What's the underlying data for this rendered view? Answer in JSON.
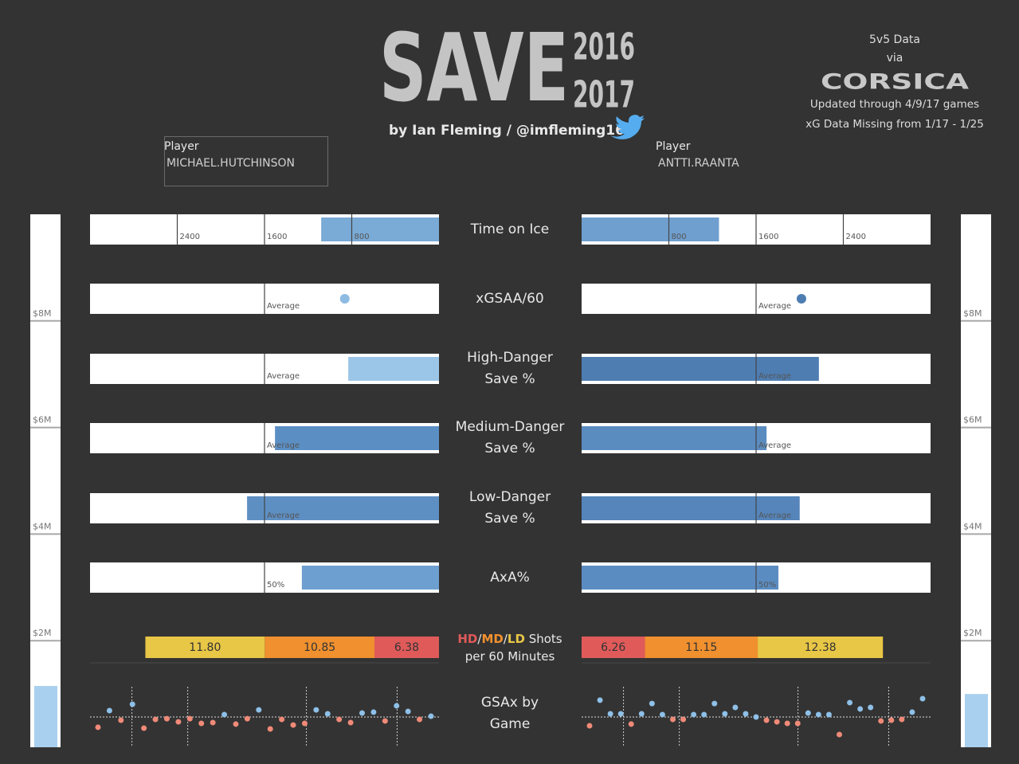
{
  "header": {
    "title": "SAVE",
    "season_start": "2016",
    "season_end": "2017",
    "byline": "by Ian Fleming / @imfleming16"
  },
  "source": {
    "lines": [
      "5v5 Data",
      "via"
    ],
    "logo": "CORSICA",
    "notes": [
      "Updated through 4/9/17 games",
      "xG Data Missing from 1/17 - 1/25"
    ]
  },
  "players": [
    {
      "label": "Player",
      "name": "MICHAEL.HUTCHINSON"
    },
    {
      "label": "Player",
      "name": "ANTTI.RAANTA"
    }
  ],
  "chart_data": [
    {
      "type": "bar",
      "title": "Time on Ice",
      "values": [
        1080,
        1260
      ],
      "colors": [
        "#7aaad6",
        "#6f9fcf"
      ],
      "xlim": [
        0,
        3200
      ],
      "xticks": [
        800,
        1600,
        2400
      ]
    },
    {
      "type": "dot",
      "title": "xGSAA/60",
      "values": [
        -0.23,
        0.13
      ],
      "colors": [
        "#8dbbe2",
        "#4e7db2"
      ],
      "xlim": [
        -0.5,
        0.5
      ],
      "xticks": [
        {
          "value": 0,
          "label": "Average"
        }
      ]
    },
    {
      "type": "bar",
      "title": "High-Danger Save %",
      "values": [
        0.752,
        0.836
      ],
      "colors": [
        "#9cc6e8",
        "#4e7db2"
      ],
      "xlim": [
        0.7,
        0.9
      ],
      "xticks": [
        {
          "value": 0.8,
          "label": "Average"
        }
      ]
    },
    {
      "type": "bar",
      "title": "Medium-Danger Save %",
      "values": [
        0.897,
        0.903
      ],
      "colors": [
        "#5b8fc4",
        "#5a8cc0"
      ],
      "xlim": [
        0.85,
        0.95
      ],
      "xticks": [
        {
          "value": 0.9,
          "label": "Average"
        }
      ]
    },
    {
      "type": "bar",
      "title": "Low-Danger Save %",
      "values": [
        0.982,
        0.985
      ],
      "colors": [
        "#5e8fc3",
        "#5585bb"
      ],
      "xlim": [
        0.96,
        1.0
      ],
      "xticks": [
        {
          "value": 0.98,
          "label": "Average"
        }
      ]
    },
    {
      "type": "bar",
      "title": "AxA%",
      "values": [
        39.3,
        56.4
      ],
      "colors": [
        "#6d9fd0",
        "#5b8cc1"
      ],
      "xlim": [
        0,
        100
      ],
      "xticks": [
        {
          "value": 50,
          "label": "50%"
        }
      ]
    },
    {
      "type": "stacked-bar",
      "title": "Shots per 60 Minutes",
      "separator": "/",
      "xlim": [
        0,
        34.5
      ],
      "series": [
        {
          "name": "HD",
          "color": "#e05a5a",
          "values": [
            6.38,
            6.26
          ],
          "value_labels": [
            "6.38",
            "6.26"
          ]
        },
        {
          "name": "MD",
          "color": "#f0902e",
          "values": [
            10.85,
            11.15
          ],
          "value_labels": [
            "10.85",
            "11.15"
          ]
        },
        {
          "name": "LD",
          "color": "#e8c646",
          "values": [
            11.8,
            12.38
          ],
          "value_labels": [
            "11.80",
            "12.38"
          ]
        }
      ]
    },
    {
      "type": "strip",
      "title": "GSAx by Game",
      "colors": [
        "#8ec0e8",
        "#f08a78"
      ],
      "ylim": [
        -2,
        2
      ],
      "series": [
        {
          "values": [
            -0.68,
            0.42,
            -0.21,
            0.84,
            -0.74,
            -0.16,
            -0.11,
            -0.32,
            -0.11,
            -0.42,
            -0.37,
            0.16,
            -0.47,
            -0.11,
            0.47,
            -0.79,
            -0.16,
            -0.53,
            -0.42,
            0.47,
            0.21,
            -0.16,
            -0.37,
            0.26,
            0.32,
            -0.26,
            0.74,
            0.37,
            -0.16,
            0.05
          ]
        },
        {
          "values": [
            -0.58,
            1.11,
            0.21,
            0.21,
            -0.47,
            0.21,
            0.89,
            0.16,
            -0.16,
            -0.16,
            0.16,
            0.16,
            0.89,
            0.21,
            0.63,
            0.21,
            0,
            -0.21,
            -0.32,
            -0.42,
            -0.42,
            0.26,
            0.16,
            0.16,
            -1.16,
            0.95,
            0.53,
            0.63,
            -0.26,
            -0.21,
            -0.16,
            0.32,
            1.21
          ]
        }
      ]
    },
    {
      "type": "column",
      "values": [
        1150000,
        1000000
      ],
      "color": "#a9d0ee",
      "ylim": [
        0,
        10000000
      ],
      "yticks": [
        {
          "value": 2000000,
          "label": "$2M"
        },
        {
          "value": 4000000,
          "label": "$4M"
        },
        {
          "value": 6000000,
          "label": "$6M"
        },
        {
          "value": 8000000,
          "label": "$8M"
        }
      ]
    }
  ]
}
